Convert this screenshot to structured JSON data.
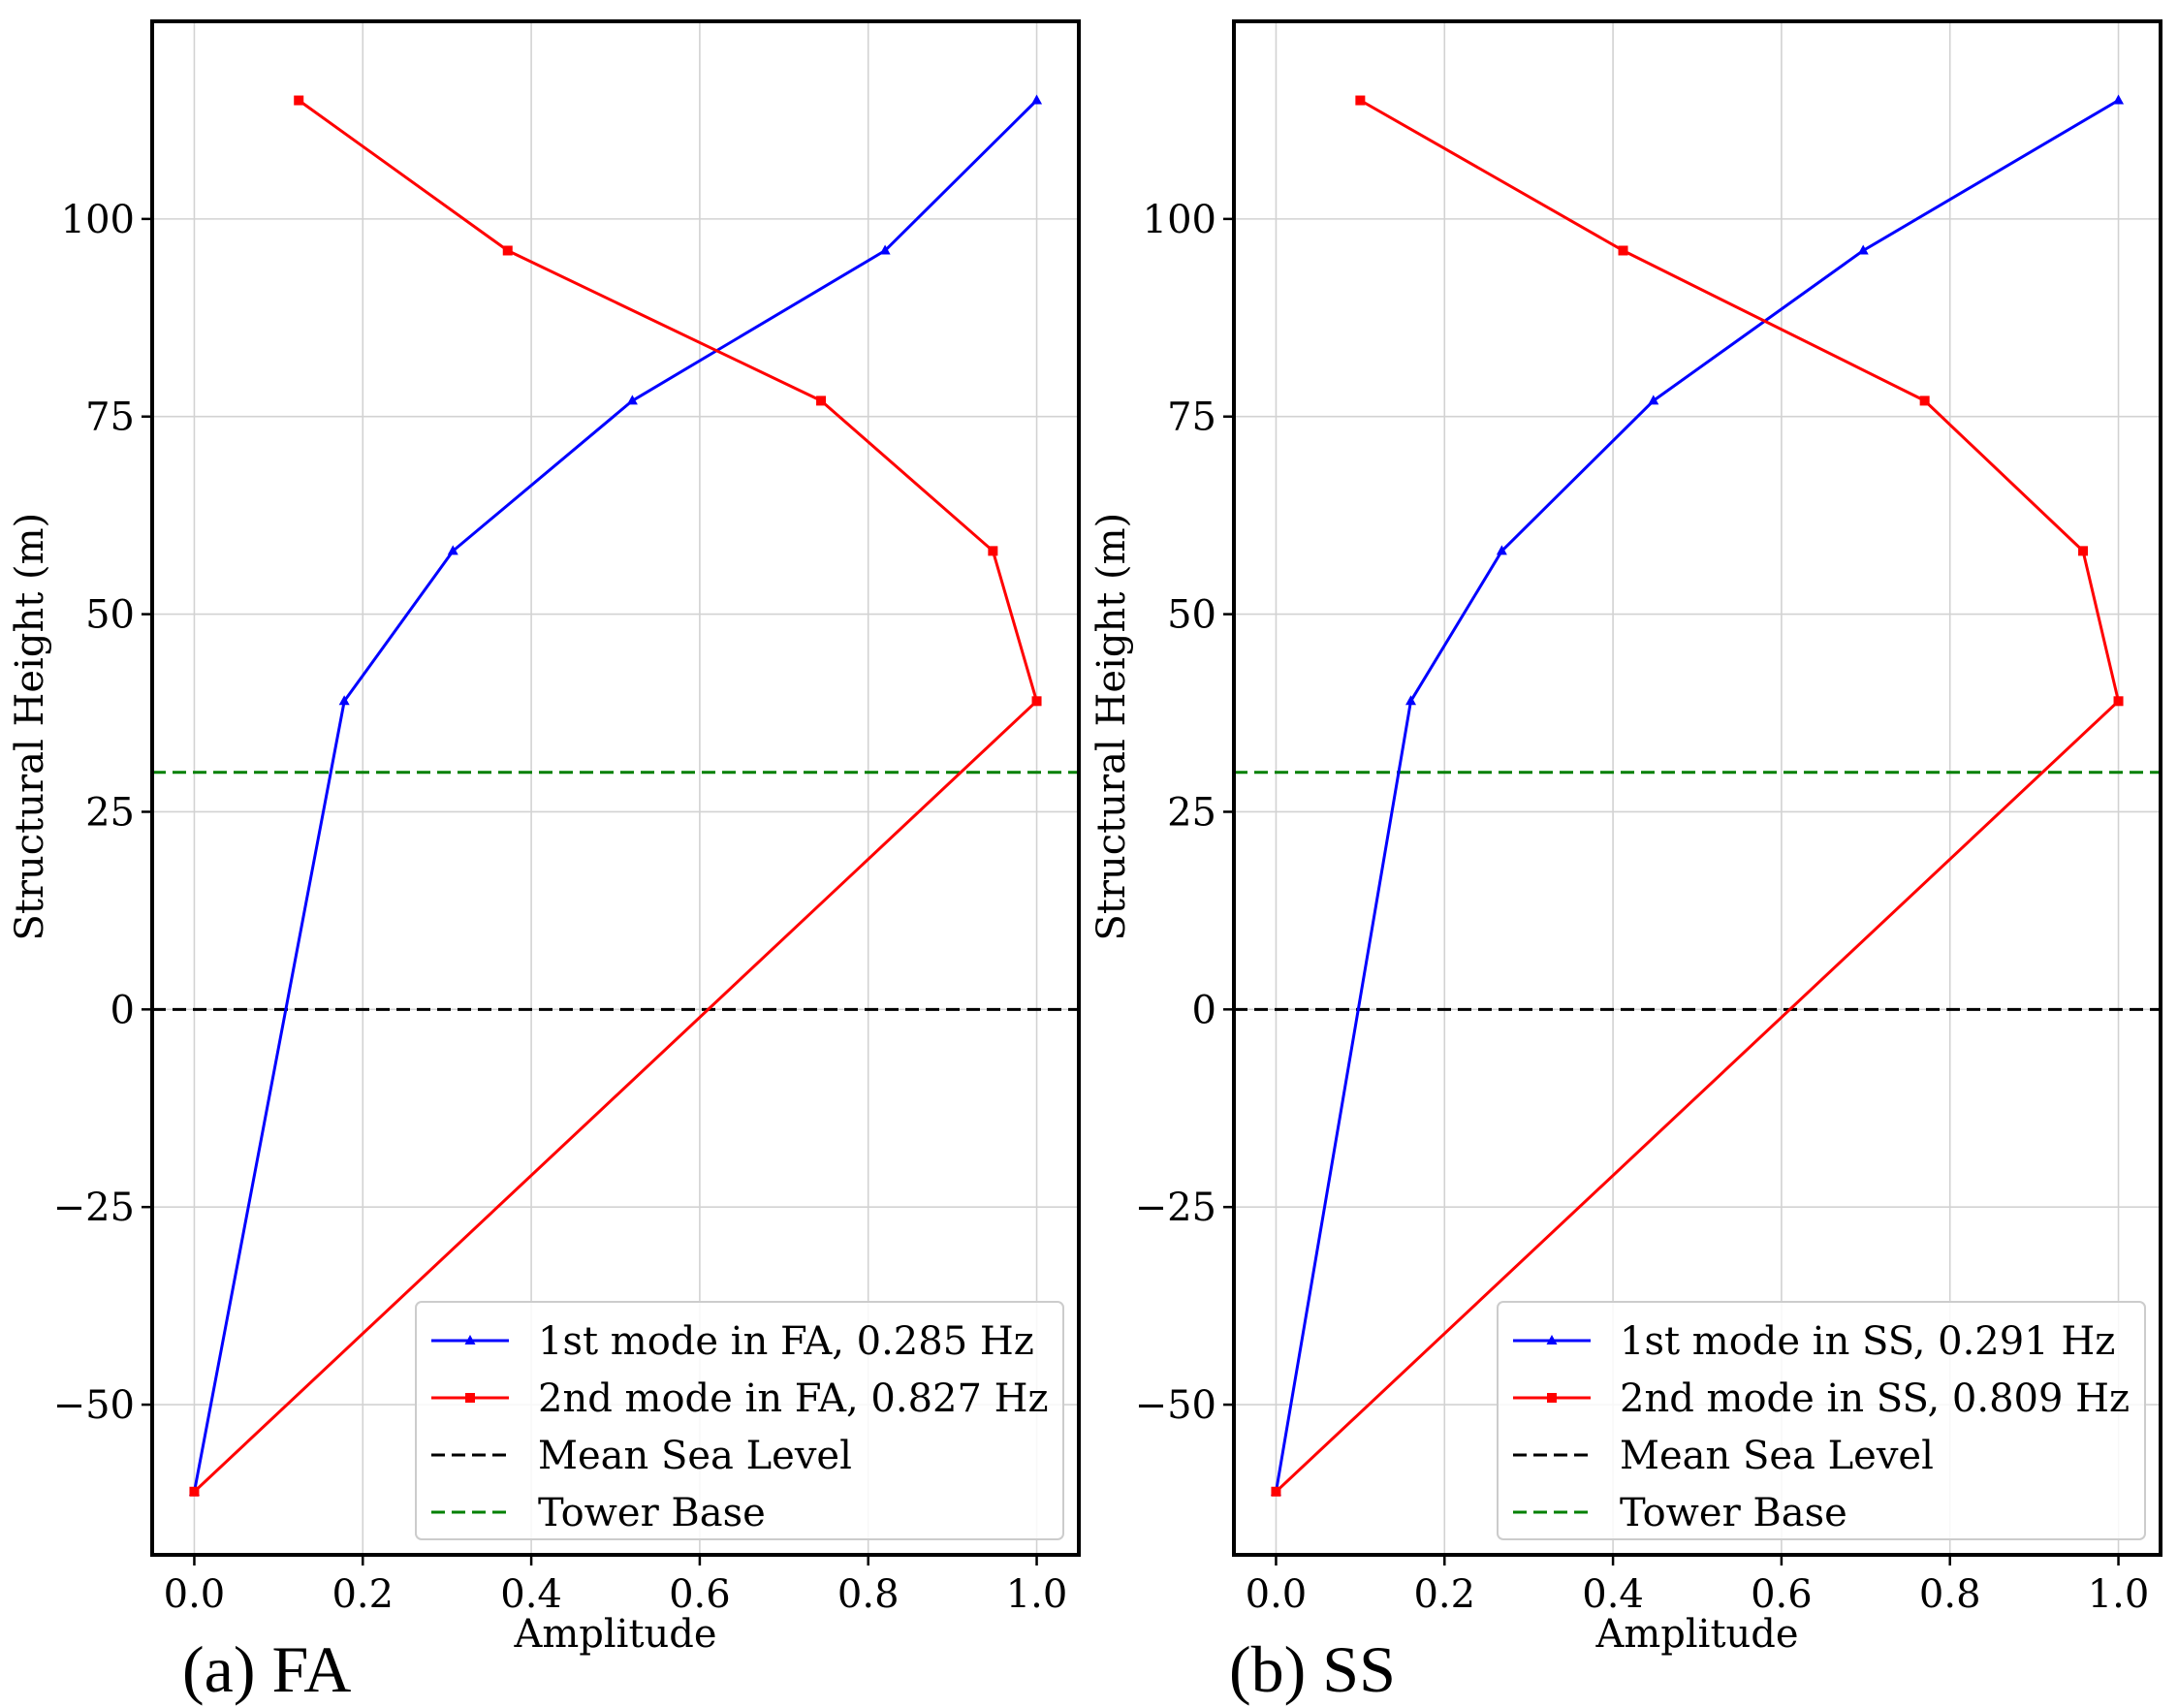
{
  "chart_data": [
    {
      "type": "line",
      "caption": "(a) FA",
      "xlabel": "Amplitude",
      "ylabel": "Structural Height (m)",
      "xlim": [
        -0.05,
        1.05
      ],
      "ylim": [
        -69,
        125
      ],
      "xticks": [
        0.0,
        0.2,
        0.4,
        0.6,
        0.8,
        1.0
      ],
      "xtick_labels": [
        "0.0",
        "0.2",
        "0.4",
        "0.6",
        "0.8",
        "1.0"
      ],
      "yticks": [
        -50,
        -25,
        0,
        25,
        50,
        75,
        100
      ],
      "ytick_labels": [
        "−50",
        "−25",
        "0",
        "25",
        "50",
        "75",
        "100"
      ],
      "grid": true,
      "legend_position": "lower-right",
      "series": [
        {
          "name": "1st mode in FA, 0.285 Hz",
          "color": "#0000ff",
          "marker": "triangle",
          "x": [
            0.0,
            0.178,
            0.307,
            0.52,
            0.82,
            1.0
          ],
          "y": [
            -61,
            39,
            58,
            77,
            96,
            115
          ]
        },
        {
          "name": "2nd mode in FA, 0.827 Hz",
          "color": "#ff0000",
          "marker": "square",
          "x": [
            0.0,
            1.0,
            0.948,
            0.744,
            0.372,
            0.124
          ],
          "y": [
            -61,
            39,
            58,
            77,
            96,
            115
          ]
        }
      ],
      "reference_lines": [
        {
          "name": "Mean Sea Level",
          "y": 0,
          "color": "#000000",
          "style": "dashed"
        },
        {
          "name": "Tower Base",
          "y": 30,
          "color": "#008000",
          "style": "dashed"
        }
      ]
    },
    {
      "type": "line",
      "caption": "(b) SS",
      "xlabel": "Amplitude",
      "ylabel": "Structural Height (m)",
      "xlim": [
        -0.05,
        1.05
      ],
      "ylim": [
        -69,
        125
      ],
      "xticks": [
        0.0,
        0.2,
        0.4,
        0.6,
        0.8,
        1.0
      ],
      "xtick_labels": [
        "0.0",
        "0.2",
        "0.4",
        "0.6",
        "0.8",
        "1.0"
      ],
      "yticks": [
        -50,
        -25,
        0,
        25,
        50,
        75,
        100
      ],
      "ytick_labels": [
        "−50",
        "−25",
        "0",
        "25",
        "50",
        "75",
        "100"
      ],
      "grid": true,
      "legend_position": "lower-right",
      "series": [
        {
          "name": "1st mode in SS, 0.291 Hz",
          "color": "#0000ff",
          "marker": "triangle",
          "x": [
            0.0,
            0.16,
            0.268,
            0.448,
            0.697,
            1.0
          ],
          "y": [
            -61,
            39,
            58,
            77,
            96,
            115
          ]
        },
        {
          "name": "2nd mode in SS, 0.809 Hz",
          "color": "#ff0000",
          "marker": "square",
          "x": [
            0.0,
            1.0,
            0.958,
            0.77,
            0.412,
            0.1
          ],
          "y": [
            -61,
            39,
            58,
            77,
            96,
            115
          ]
        }
      ],
      "reference_lines": [
        {
          "name": "Mean Sea Level",
          "y": 0,
          "color": "#000000",
          "style": "dashed"
        },
        {
          "name": "Tower Base",
          "y": 30,
          "color": "#008000",
          "style": "dashed"
        }
      ]
    }
  ]
}
